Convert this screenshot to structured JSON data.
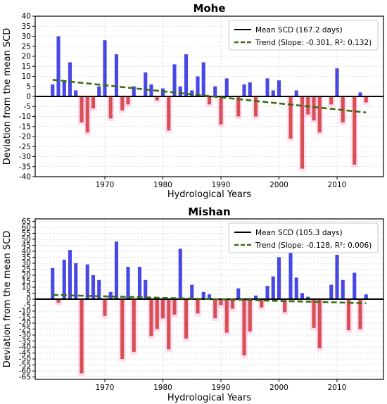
{
  "chart_data": [
    {
      "type": "bar",
      "title": "Mohe",
      "xlabel": "Hydrological Years",
      "ylabel": "Deviation from the mean SCD",
      "xlim": [
        1958,
        2018
      ],
      "ylim": [
        -40,
        40
      ],
      "xticks": [
        "1970",
        "1980",
        "1990",
        "2000",
        "2010"
      ],
      "yticks": [
        "40",
        "35",
        "30",
        "25",
        "20",
        "15",
        "10",
        "5",
        "0",
        "-5",
        "-10",
        "-15",
        "-20",
        "-25",
        "-30",
        "-35",
        "-40"
      ],
      "grid": true,
      "legend_position": "top-right",
      "colors": {
        "positive": "#2020e0",
        "negative": "#d03030",
        "trend": "#3a6e10",
        "mean": "#000000"
      },
      "legend": [
        {
          "label": "Mean SCD (167.2 days)",
          "style": "solid",
          "color": "#000000"
        },
        {
          "label": "Trend (Slope: -0.301, R²: 0.132)",
          "style": "dashed",
          "color": "#3a6e10"
        }
      ],
      "x": [
        1961,
        1962,
        1963,
        1964,
        1965,
        1966,
        1967,
        1968,
        1969,
        1970,
        1971,
        1972,
        1973,
        1974,
        1975,
        1976,
        1977,
        1978,
        1979,
        1980,
        1981,
        1982,
        1983,
        1984,
        1985,
        1986,
        1987,
        1988,
        1989,
        1990,
        1991,
        1992,
        1993,
        1994,
        1995,
        1996,
        1997,
        1998,
        1999,
        2000,
        2001,
        2002,
        2003,
        2004,
        2005,
        2006,
        2007,
        2008,
        2009,
        2010,
        2011,
        2012,
        2013,
        2014,
        2015
      ],
      "values": [
        6,
        30,
        8,
        17,
        3,
        -13,
        -18,
        -6,
        5,
        28,
        -11,
        21,
        -7,
        -4,
        5,
        0,
        12,
        6,
        -2,
        4,
        -17,
        16,
        5,
        21,
        3,
        10,
        17,
        -4,
        5,
        -14,
        9,
        0,
        -10,
        6,
        7,
        -10,
        0,
        9,
        3,
        8,
        0,
        -21,
        3,
        -36,
        -9,
        -12,
        -18,
        0,
        -4,
        14,
        -13,
        0,
        -34,
        2,
        -3
      ],
      "trend": {
        "x": [
          1961,
          2015
        ],
        "y": [
          8.3,
          -8.0
        ]
      }
    },
    {
      "type": "bar",
      "title": "Mishan",
      "xlabel": "Hydrological Years",
      "ylabel": "Deviation from the mean SCD",
      "xlim": [
        1958,
        2018
      ],
      "ylim": [
        -67,
        67
      ],
      "xticks": [
        "1970",
        "1980",
        "1990",
        "2000",
        "2010"
      ],
      "yticks": [
        "65",
        "60",
        "55",
        "50",
        "45",
        "40",
        "35",
        "30",
        "25",
        "20",
        "15",
        "10",
        "5",
        "0",
        "-5",
        "-10",
        "-15",
        "-20",
        "-25",
        "-30",
        "-35",
        "-40",
        "-45",
        "-50",
        "-55",
        "-60",
        "-65"
      ],
      "grid": true,
      "legend_position": "top-right",
      "colors": {
        "positive": "#2020e0",
        "negative": "#d03030",
        "trend": "#3a6e10",
        "mean": "#000000"
      },
      "legend": [
        {
          "label": "Mean SCD (105.3 days)",
          "style": "solid",
          "color": "#000000"
        },
        {
          "label": "Trend (Slope: -0.128, R²: 0.006)",
          "style": "dashed",
          "color": "#3a6e10"
        }
      ],
      "x": [
        1961,
        1962,
        1963,
        1964,
        1965,
        1966,
        1967,
        1968,
        1969,
        1970,
        1971,
        1972,
        1973,
        1974,
        1975,
        1976,
        1977,
        1978,
        1979,
        1980,
        1981,
        1982,
        1983,
        1984,
        1985,
        1986,
        1987,
        1988,
        1989,
        1990,
        1991,
        1992,
        1993,
        1994,
        1995,
        1996,
        1997,
        1998,
        1999,
        2000,
        2001,
        2002,
        2003,
        2004,
        2005,
        2006,
        2007,
        2008,
        2009,
        2010,
        2011,
        2012,
        2013,
        2014,
        2015
      ],
      "values": [
        26,
        -3,
        33,
        41,
        30,
        -62,
        29,
        20,
        16,
        -14,
        6,
        48,
        -50,
        27,
        -44,
        27,
        16,
        -31,
        -25,
        -16,
        -42,
        -13,
        42,
        -33,
        12,
        -12,
        6,
        4,
        -16,
        -5,
        -28,
        -8,
        9,
        -47,
        -27,
        3,
        -7,
        11,
        19,
        35,
        -11,
        39,
        18,
        5,
        2,
        -24,
        -41,
        0,
        12,
        37,
        16,
        -26,
        22,
        -25,
        4
      ],
      "trend": {
        "x": [
          1961,
          2015
        ],
        "y": [
          3.5,
          -3.4
        ]
      }
    }
  ]
}
